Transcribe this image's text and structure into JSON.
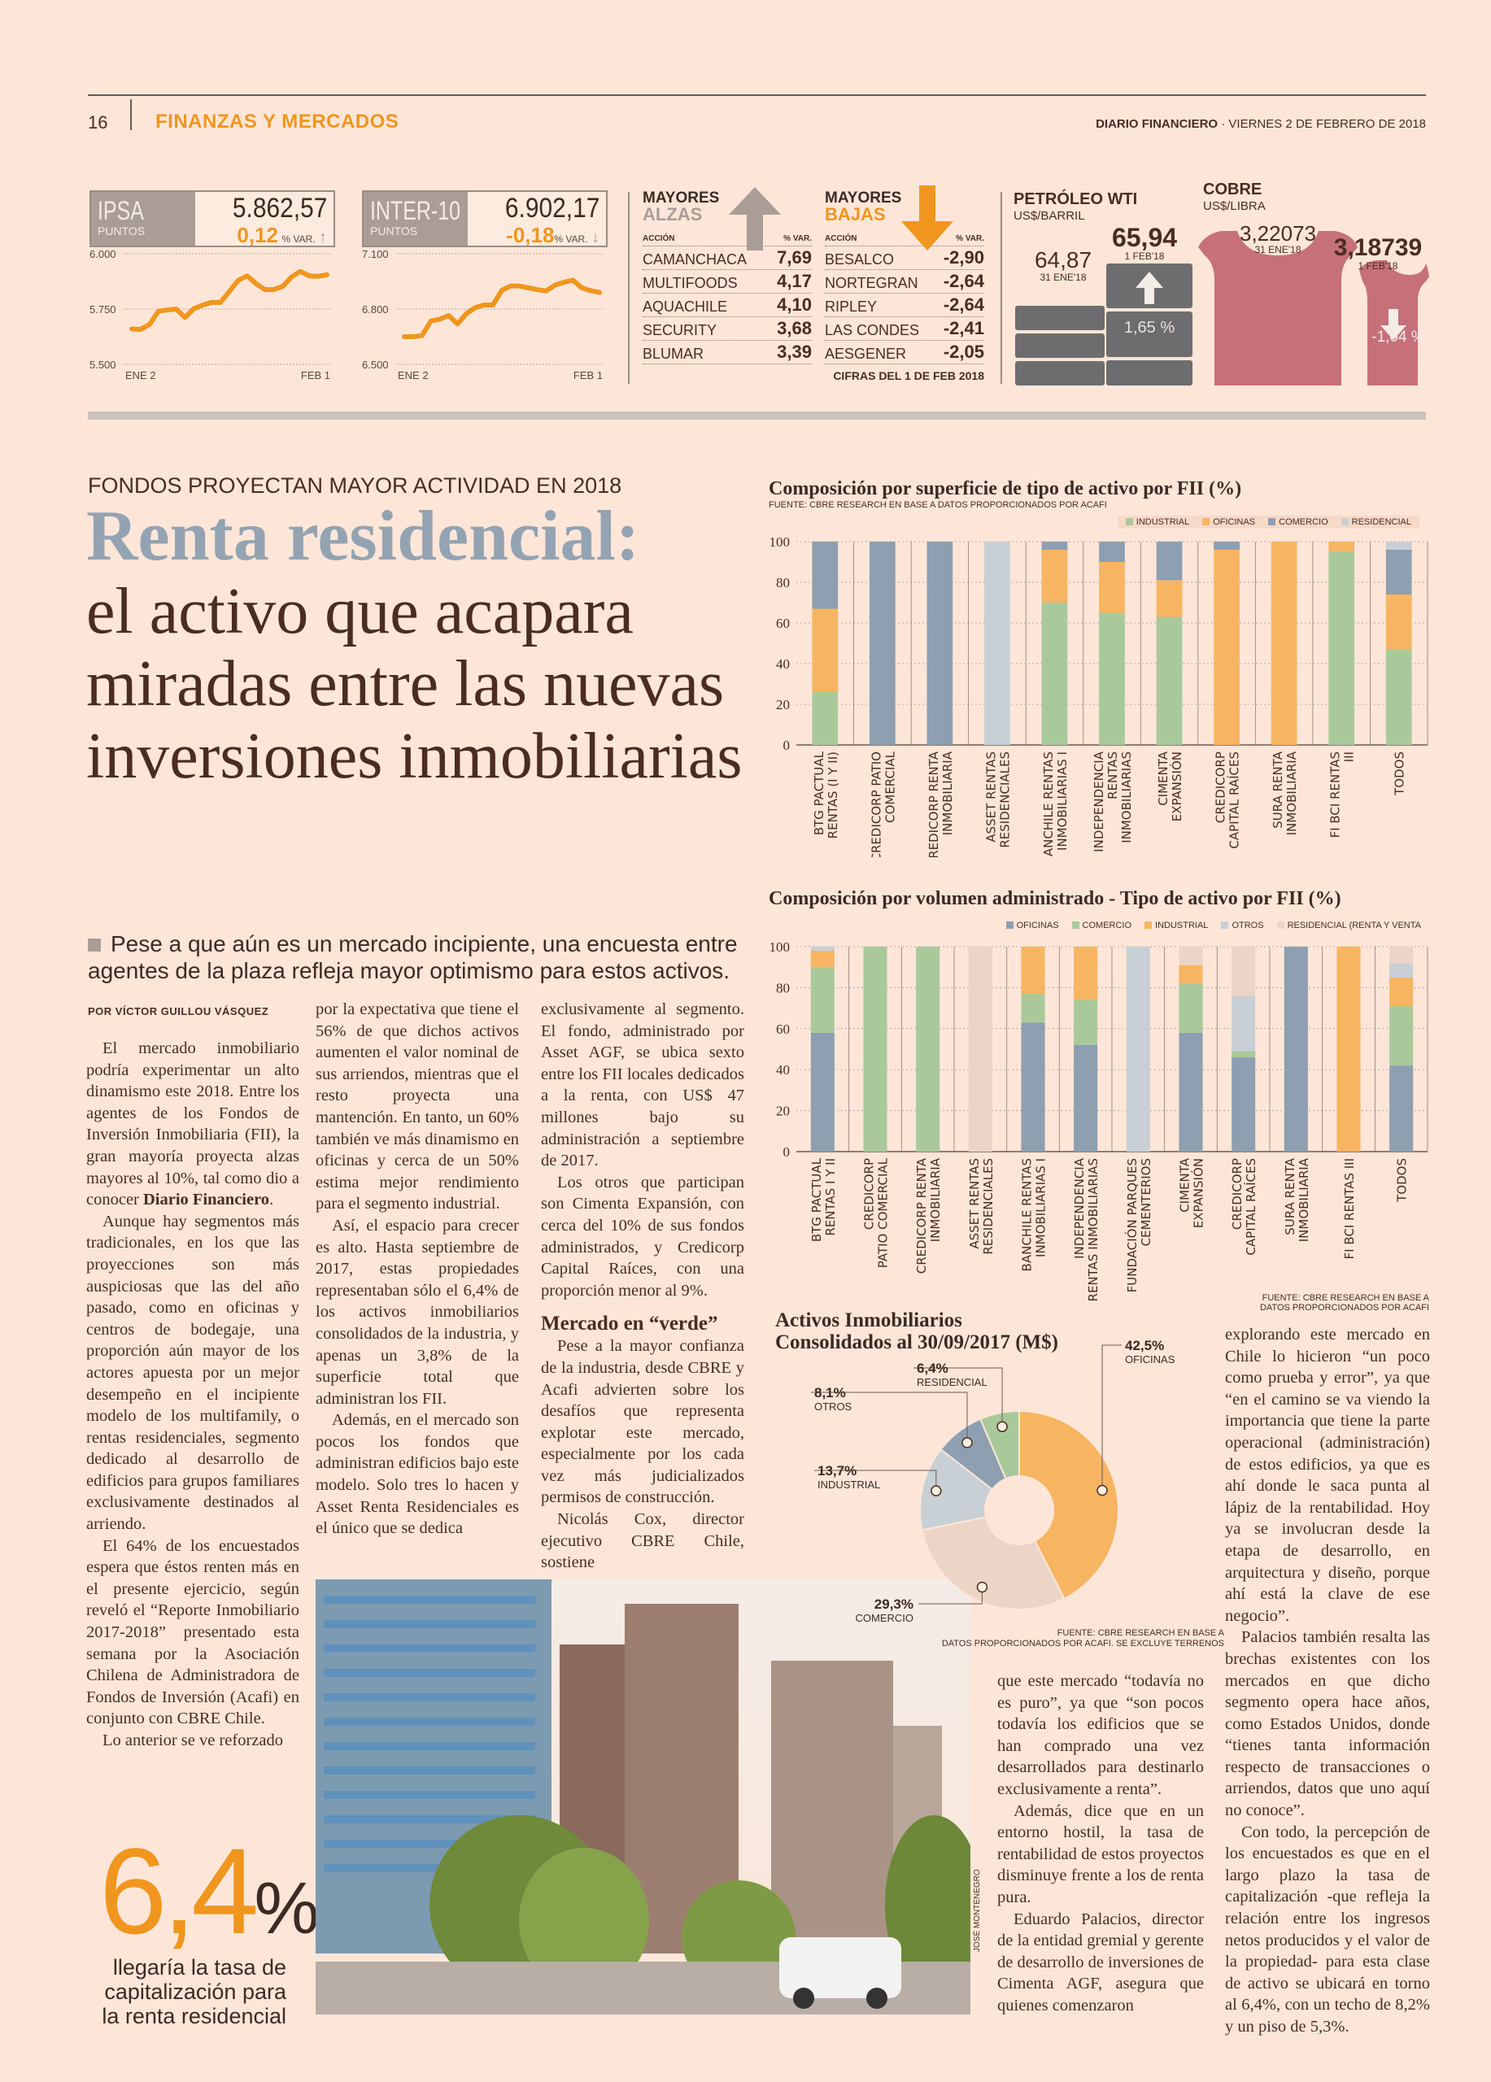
{
  "header": {
    "page_number": "16",
    "section": "FINANZAS Y MERCADOS",
    "publication": "DIARIO FINANCIERO",
    "date": " · VIERNES 2 DE FEBRERO DE 2018"
  },
  "ticker": {
    "ipsa": {
      "name": "IPSA",
      "unit": "PUNTOS",
      "value": "5.862,57",
      "change": "0,12",
      "change_label": "% VAR.",
      "direction": "up",
      "y_ticks": [
        "6.000",
        "5.750",
        "5.500"
      ],
      "ylim": [
        5500,
        6000
      ],
      "x_start": "ENE 2",
      "x_end": "FEB 1",
      "series": [
        5660,
        5658,
        5680,
        5740,
        5746,
        5750,
        5712,
        5752,
        5768,
        5780,
        5780,
        5830,
        5880,
        5900,
        5865,
        5838,
        5838,
        5852,
        5895,
        5920,
        5900,
        5898,
        5905
      ]
    },
    "inter10": {
      "name": "INTER-10",
      "unit": "PUNTOS",
      "value": "6.902,17",
      "change": "-0,18",
      "change_label": "% VAR.",
      "direction": "down",
      "y_ticks": [
        "7.100",
        "6.800",
        "6.500"
      ],
      "ylim": [
        6500,
        7100
      ],
      "x_start": "ENE 2",
      "x_end": "FEB 1",
      "series": [
        6650,
        6650,
        6656,
        6735,
        6745,
        6765,
        6720,
        6775,
        6808,
        6822,
        6822,
        6902,
        6925,
        6925,
        6915,
        6905,
        6898,
        6930,
        6945,
        6957,
        6915,
        6900,
        6890
      ]
    },
    "alzas": {
      "title1": "MAYORES",
      "title2": "ALZAS",
      "col_action": "ACCIÓN",
      "col_var": "% VAR.",
      "rows": [
        {
          "name": "CAMANCHACA",
          "value": "7,69"
        },
        {
          "name": "MULTIFOODS",
          "value": "4,17"
        },
        {
          "name": "AQUACHILE",
          "value": "4,10"
        },
        {
          "name": "SECURITY",
          "value": "3,68"
        },
        {
          "name": "BLUMAR",
          "value": "3,39"
        }
      ]
    },
    "bajas": {
      "title1": "MAYORES",
      "title2": "BAJAS",
      "col_action": "ACCIÓN",
      "col_var": "% VAR.",
      "rows": [
        {
          "name": "BESALCO",
          "value": "-2,90"
        },
        {
          "name": "NORTEGRAN",
          "value": "-2,64"
        },
        {
          "name": "RIPLEY",
          "value": "-2,64"
        },
        {
          "name": "LAS CONDES",
          "value": "-2,41"
        },
        {
          "name": "AESGENER",
          "value": "-2,05"
        }
      ]
    },
    "cifras_note": "CIFRAS DEL 1 DE FEB 2018",
    "petroleo": {
      "title": "PETRÓLEO WTI",
      "unit": "US$/BARRIL",
      "prev_value": "64,87",
      "prev_date": "31 ENE'18",
      "value": "65,94",
      "date": "1 FEB'18",
      "change": "1,65 %"
    },
    "cobre": {
      "title": "COBRE",
      "unit": "US$/LIBRA",
      "prev_value": "3,22073",
      "prev_date": "31 ENE'18",
      "value": "3,18739",
      "date": "1 FEB'18",
      "change": "-1,04 %"
    }
  },
  "article": {
    "kicker": "FONDOS PROYECTAN MAYOR ACTIVIDAD EN 2018",
    "headline_1": "Renta residencial:",
    "headline_2": "el activo que acapara miradas entre las nuevas inversiones inmobiliarias",
    "deck": "Pese a que aún es un mercado incipiente, una encuesta entre agentes de la plaza refleja mayor optimismo para estos activos.",
    "byline": "POR VÍCTOR GUILLOU VÁSQUEZ",
    "col1": {
      "p1a": "El mercado inmobiliario podría experimentar un alto dinamismo este 2018. Entre los agentes de los Fondos de Inversión Inmobiliaria (FII), la gran mayoría proyecta alzas mayores al 10%, tal como dio a conocer ",
      "p1b": "Diario Financiero",
      "p1c": ".",
      "p2": "Aunque hay segmentos más tradicionales, en los que las proyecciones son más auspiciosas que las del año pasado, como en oficinas y centros de bodegaje, una proporción aún mayor de los actores apuesta por un mejor desempeño en el incipiente modelo de los multifamily, o rentas residenciales, segmento dedicado al desarrollo de edificios para grupos familiares exclusivamente destinados al arriendo.",
      "p3": "El 64% de los encuestados espera que éstos renten más en el presente ejercicio, según reveló el “Reporte Inmobiliario 2017-2018” presentado esta semana por la Asociación Chilena de Administradora de Fondos de Inversión (Acafi) en conjunto con CBRE Chile.",
      "p4": "Lo anterior se ve reforzado"
    },
    "col2": [
      "por la expectativa que tiene el 56% de que dichos activos aumenten el valor nominal de sus arriendos, mientras que el resto proyecta una mantención. En tanto, un 60% también ve más dinamismo en oficinas y cerca de un 50% estima mejor rendimiento para el segmento industrial.",
      "Así, el espacio para crecer es alto. Hasta septiembre de 2017, estas propiedades representaban sólo el 6,4% de los activos inmobiliarios consolidados de la industria, y apenas un 3,8% de la superficie total que administran los FII.",
      "Además, en el mercado son pocos los fondos que administran edificios bajo este modelo. Solo tres lo hacen y Asset Renta Residenciales es el único que se dedica"
    ],
    "col3": [
      "exclusivamente al segmento. El fondo, administrado por Asset AGF, se ubica sexto entre los FII locales dedicados a la renta, con US$ 47 millones bajo su administración a septiembre de 2017.",
      "Los otros que participan son Cimenta Expansión, con cerca del 10% de sus fondos administrados, y Credicorp Capital Raíces, con una proporción menor al 9%.",
      "Pese a la mayor confianza de la industria, desde CBRE y Acafi advierten sobre los desafíos que representa explotar este mercado, especialmente por los cada vez más judicializados permisos de construcción.",
      "Nicolás Cox, director ejecutivo CBRE Chile, sostiene"
    ],
    "subhead": "Mercado en “verde”",
    "col4": [
      "que este mercado “todavía no es puro”, ya que “son pocos todavía los edificios que se han comprado una vez desarrollados para destinarlo exclusivamente a renta”.",
      "Además, dice que en un entorno hostil, la tasa de rentabilidad de estos proyectos disminuye frente a los de renta pura.",
      "Eduardo Palacios, director de la entidad gremial y gerente de desarrollo de inversiones de Cimenta AGF, asegura que quienes comenzaron"
    ],
    "col5": [
      "explorando este mercado en Chile lo hicieron “un poco como prueba y error”, ya que “en el camino se va viendo la importancia que tiene la parte operacional (administración) de estos edificios, ya que es ahí donde le saca punta al lápiz de la rentabilidad. Hoy ya se involucran desde la etapa de desarrollo, en arquitectura y diseño, porque ahí está la clave de ese negocio”.",
      "Palacios también resalta las brechas existentes con los mercados en que dicho segmento opera hace años, como Estados Unidos, donde “tienes tanta información respecto de transacciones o arriendos, datos que uno aquí no conoce”.",
      "Con todo, la percepción de los encuestados es que en el largo plazo la tasa de capitalización -que refleja la relación entre los ingresos netos producidos y el valor de la propiedad- para esta clase de activo se ubicará en torno al 6,4%, con un techo de 8,2% y un piso de 5,3%."
    ],
    "highlight_value": "6,4",
    "highlight_pct": "%",
    "highlight_caption": "llegaría la tasa de capitalización para la renta residencial",
    "photo_credit": "JOSÉ MONTENEGRO"
  },
  "colors": {
    "industrial": "#a9c99b",
    "oficinas": "#f7b562",
    "comercio": "#8d9fb1",
    "otros": "#c8d0d5",
    "residencial_light": "#c8d0d5",
    "residencial_beige": "#ecd5c7",
    "accent": "#f0961e"
  },
  "chart_data": [
    {
      "type": "bar",
      "stacked": true,
      "title": "Composición por superficie de tipo de activo por FII (%)",
      "source": "FUENTE: CBRE RESEARCH EN BASE A DATOS PROPORCIONADOS POR ACAFI",
      "ylim": [
        0,
        100
      ],
      "y_ticks": [
        "0",
        "20",
        "40",
        "60",
        "80",
        "100"
      ],
      "legend_position": "top-right",
      "categories": [
        [
          "BTG PACTUAL",
          "RENTAS (I Y II)"
        ],
        [
          "CREDICORP PATIO",
          "COMERCIAL"
        ],
        [
          "CREDICORP RENTA",
          "INMOBILIARIA"
        ],
        [
          "ASSET RENTAS",
          "RESIDENCIALES"
        ],
        [
          "BANCHILE RENTAS",
          "INMOBILIARIAS I"
        ],
        [
          "INDEPENDENCIA",
          "RENTAS",
          "INMOBILIARIAS"
        ],
        [
          "CIMENTA",
          "EXPANSIÓN"
        ],
        [
          "CREDICORP",
          "CAPITAL RAÍCES"
        ],
        [
          "SURA RENTA",
          "INMOBILIARIA"
        ],
        [
          "FI BCI RENTAS",
          "III"
        ],
        [
          "TODOS"
        ]
      ],
      "series": [
        {
          "name": "INDUSTRIAL",
          "color_key": "industrial",
          "values": [
            26,
            0,
            0,
            0,
            70,
            65,
            63,
            0,
            0,
            95,
            47
          ]
        },
        {
          "name": "OFICINAS",
          "color_key": "oficinas",
          "values": [
            41,
            0,
            0,
            0,
            26,
            25,
            18,
            96,
            100,
            5,
            27
          ]
        },
        {
          "name": "COMERCIO",
          "color_key": "comercio",
          "values": [
            33,
            100,
            100,
            0,
            4,
            10,
            19,
            4,
            0,
            0,
            22
          ]
        },
        {
          "name": "RESIDENCIAL",
          "color_key": "residencial_light",
          "values": [
            0,
            0,
            0,
            100,
            0,
            0,
            0,
            0,
            0,
            0,
            4
          ]
        }
      ]
    },
    {
      "type": "bar",
      "stacked": true,
      "title": "Composición por volumen administrado - Tipo de activo por FII (%)",
      "source_1": "FUENTE: CBRE RESEARCH EN BASE A",
      "source_2": "DATOS PROPORCIONADOS POR ACAFI",
      "ylim": [
        0,
        100
      ],
      "y_ticks": [
        "0",
        "20",
        "40",
        "60",
        "80",
        "100"
      ],
      "legend_position": "top-right",
      "categories": [
        [
          "BTG PACTUAL",
          "RENTAS I Y II"
        ],
        [
          "CREDICORP",
          "PATIO COMERCIAL"
        ],
        [
          "CREDICORP RENTA",
          "INMOBILIARIA"
        ],
        [
          "ASSET RENTAS",
          "RESIDENCIALES"
        ],
        [
          "BANCHILE RENTAS",
          "INMOBILIARIAS I"
        ],
        [
          "INDEPENDENCIA",
          "RENTAS INMOBILIARIAS"
        ],
        [
          "FUNDACIÓN PARQUES",
          "CEMENTERIOS"
        ],
        [
          "CIMENTA",
          "EXPANSIÓN"
        ],
        [
          "CREDICORP",
          "CAPITAL RAÍCES"
        ],
        [
          "SURA RENTA",
          "INMOBILIARIA"
        ],
        [
          "FI BCI RENTAS III"
        ],
        [
          "TODOS"
        ]
      ],
      "series": [
        {
          "name": "OFICINAS",
          "color_key": "comercio",
          "values": [
            58,
            0,
            0,
            0,
            63,
            52,
            0,
            58,
            46,
            100,
            0,
            42
          ]
        },
        {
          "name": "COMERCIO",
          "color_key": "industrial",
          "values": [
            32,
            100,
            100,
            0,
            14,
            22,
            0,
            24,
            3,
            0,
            0,
            29
          ]
        },
        {
          "name": "INDUSTRIAL",
          "color_key": "oficinas",
          "values": [
            8,
            0,
            0,
            0,
            23,
            26,
            0,
            9,
            0,
            0,
            100,
            14
          ]
        },
        {
          "name": "OTROS",
          "color_key": "otros",
          "values": [
            2,
            0,
            0,
            0,
            0,
            0,
            100,
            0,
            27,
            0,
            0,
            7
          ]
        },
        {
          "name": "RESIDENCIAL (RENTA Y VENTA",
          "color_key": "residencial_beige",
          "values": [
            0,
            0,
            0,
            100,
            0,
            0,
            0,
            9,
            24,
            0,
            0,
            8
          ]
        }
      ]
    },
    {
      "type": "pie",
      "donut": true,
      "title_1": "Activos Inmobiliarios",
      "title_2": "Consolidados al 30/09/2017 (M$)",
      "source_1": "FUENTE: CBRE RESEARCH EN BASE A",
      "source_2": "DATOS PROPORCIONADOS POR ACAFI. SE EXCLUYE TERRENOS",
      "slices": [
        {
          "name": "OFICINAS",
          "value": 42.5,
          "label": "42,5%",
          "color_key": "oficinas"
        },
        {
          "name": "COMERCIO",
          "value": 29.3,
          "label": "29,3%",
          "color_key": "residencial_beige"
        },
        {
          "name": "INDUSTRIAL",
          "value": 13.7,
          "label": "13,7%",
          "color_key": "otros"
        },
        {
          "name": "OTROS",
          "value": 8.1,
          "label": "8,1%",
          "color_key": "comercio"
        },
        {
          "name": "RESIDENCIAL",
          "value": 6.4,
          "label": "6,4%",
          "color_key": "industrial"
        }
      ]
    }
  ]
}
